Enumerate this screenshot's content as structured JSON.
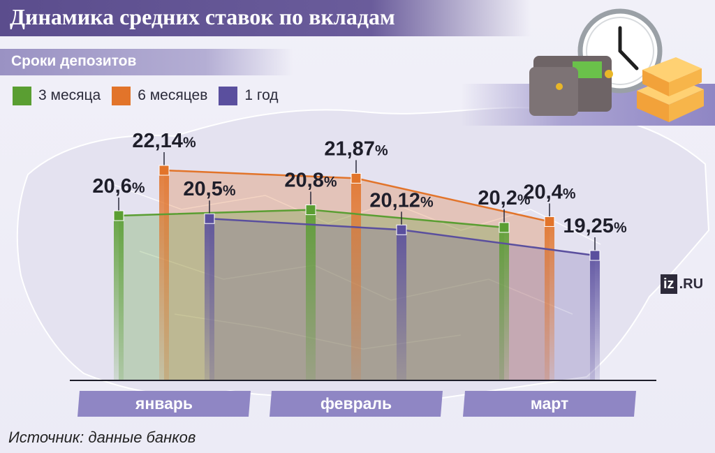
{
  "title": "Динамика средних ставок по вкладам",
  "subtitle": "Сроки депозитов",
  "source": "Источник: данные банков",
  "logo": {
    "box": "iz",
    "domain": ".RU"
  },
  "icons": [
    "wallet-icon",
    "clock-icon",
    "money-stack-icon"
  ],
  "colors": {
    "title_bg": "#5b4d8d",
    "three_months": "#5a9e32",
    "six_months": "#e2742a",
    "one_year": "#5a4f9e",
    "category_bg": "#8f86c4"
  },
  "chart_data": {
    "type": "line",
    "categories": [
      "январь",
      "февраль",
      "март"
    ],
    "unit": "%",
    "series": [
      {
        "name": "3 месяца",
        "color": "#5a9e32",
        "values": [
          20.6,
          20.8,
          20.2
        ],
        "labels": [
          "20,6",
          "20,8",
          "20,2"
        ]
      },
      {
        "name": "6 месяцев",
        "color": "#e2742a",
        "values": [
          22.14,
          21.87,
          20.4
        ],
        "labels": [
          "22,14",
          "21,87",
          "20,4"
        ]
      },
      {
        "name": "1 год",
        "color": "#5a4f9e",
        "values": [
          20.5,
          20.12,
          19.25
        ],
        "labels": [
          "20,5",
          "20,12",
          "19,25"
        ]
      }
    ],
    "legend_placement": "top-left"
  }
}
